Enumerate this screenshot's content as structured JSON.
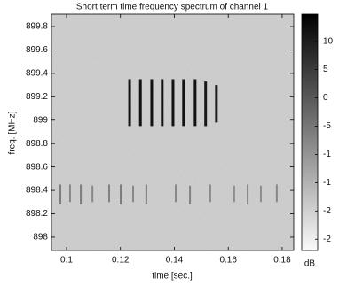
{
  "chart_data": {
    "type": "spectrogram",
    "title": "Short term time frequency spectrum of channel 1",
    "x_label": "time [sec.]",
    "y_label": "freq. [MHz]",
    "colorbar_label": "dB",
    "xlim": [
      0.0944,
      0.1843
    ],
    "xticks": [
      0.1,
      0.12,
      0.14,
      0.16,
      0.18
    ],
    "ylim": [
      897.886,
      899.906
    ],
    "yticks": [
      898,
      898.2,
      898.4,
      898.6,
      898.8,
      899,
      899.2,
      899.4,
      899.6,
      899.8
    ],
    "clim": [
      -27,
      14.8
    ],
    "cticks": [
      10,
      5,
      0,
      -5,
      {
        "value": -10,
        "label": "-1"
      },
      {
        "value": -15,
        "label": "-1"
      },
      {
        "value": -20,
        "label": "-2"
      },
      {
        "value": -25,
        "label": "-2"
      }
    ],
    "colormap": "gray-reversed",
    "bursts": {
      "x": [
        0.1234,
        0.1274,
        0.1316,
        0.1355,
        0.1395,
        0.1434,
        0.1477,
        0.1516,
        0.1556,
        0.0977,
        0.1013,
        0.1053,
        0.1096,
        0.1158,
        0.1201,
        0.1247,
        0.1296,
        0.1405,
        0.1458,
        0.1533,
        0.1622,
        0.1672,
        0.1721,
        0.178
      ],
      "freq_low": [
        898.95,
        898.95,
        898.95,
        898.95,
        898.95,
        898.95,
        898.95,
        898.95,
        898.98,
        898.28,
        898.3,
        898.28,
        898.3,
        898.3,
        898.28,
        898.3,
        898.28,
        898.3,
        898.28,
        898.3,
        898.3,
        898.28,
        898.3,
        898.3
      ],
      "freq_high": [
        899.35,
        899.35,
        899.35,
        899.35,
        899.35,
        899.35,
        899.35,
        899.33,
        899.3,
        898.45,
        898.45,
        898.45,
        898.44,
        898.45,
        898.45,
        898.44,
        898.45,
        898.45,
        898.44,
        898.45,
        898.44,
        898.45,
        898.44,
        898.45
      ],
      "level": [
        12,
        12,
        12,
        12,
        12,
        12,
        12,
        11,
        10,
        -6,
        -8,
        -6,
        -8,
        -7,
        -6,
        -8,
        -7,
        -8,
        -7,
        -8,
        -9,
        -8,
        -9,
        -8
      ]
    }
  }
}
